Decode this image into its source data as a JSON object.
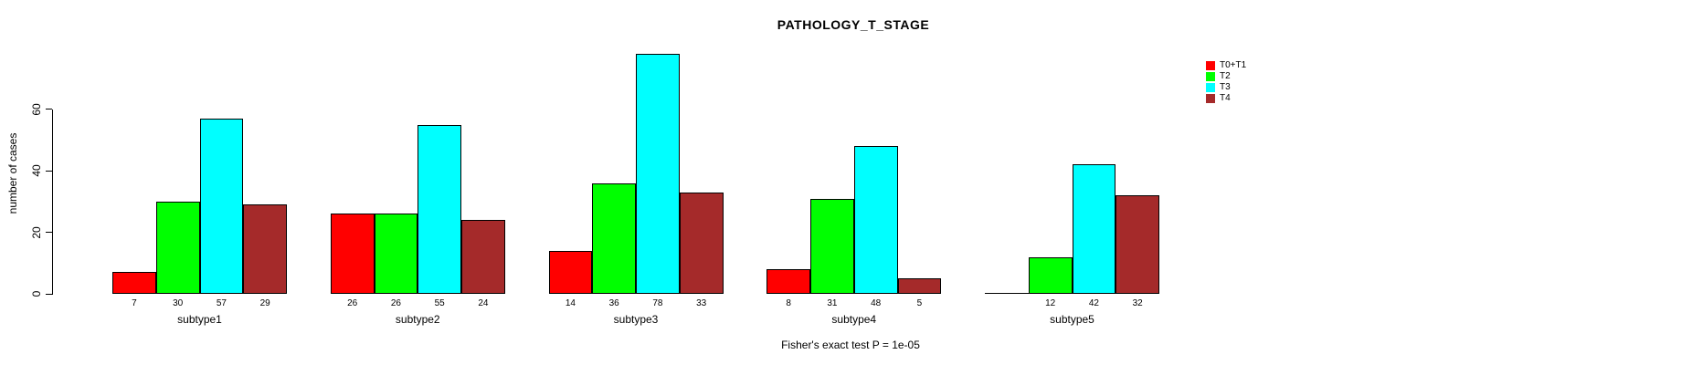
{
  "chart_data": {
    "type": "bar",
    "title": "PATHOLOGY_T_STAGE",
    "xlabel": "",
    "ylabel": "number of cases",
    "annotation": "Fisher's exact test P = 1e-05",
    "categories": [
      "subtype1",
      "subtype2",
      "subtype3",
      "subtype4",
      "subtype5"
    ],
    "series": [
      {
        "name": "T0+T1",
        "color": "#FF0000",
        "values": [
          7,
          26,
          14,
          8,
          0
        ]
      },
      {
        "name": "T2",
        "color": "#00FF00",
        "values": [
          30,
          26,
          36,
          31,
          12
        ]
      },
      {
        "name": "T3",
        "color": "#00FFFF",
        "values": [
          57,
          55,
          78,
          48,
          42
        ]
      },
      {
        "name": "T4",
        "color": "#A52A2A",
        "values": [
          29,
          24,
          33,
          5,
          32
        ]
      }
    ],
    "value_labels": [
      [
        "7",
        "30",
        "57",
        "29"
      ],
      [
        "26",
        "26",
        "55",
        "24"
      ],
      [
        "14",
        "36",
        "78",
        "33"
      ],
      [
        "8",
        "31",
        "48",
        "5"
      ],
      [
        "",
        "12",
        "42",
        "32"
      ]
    ],
    "ylim": [
      0,
      80
    ],
    "yticks": [
      0,
      20,
      40,
      60
    ],
    "grid": false,
    "legend_position": "right",
    "bar_outline_color": "#000000",
    "background_color": "#FFFFFF"
  }
}
